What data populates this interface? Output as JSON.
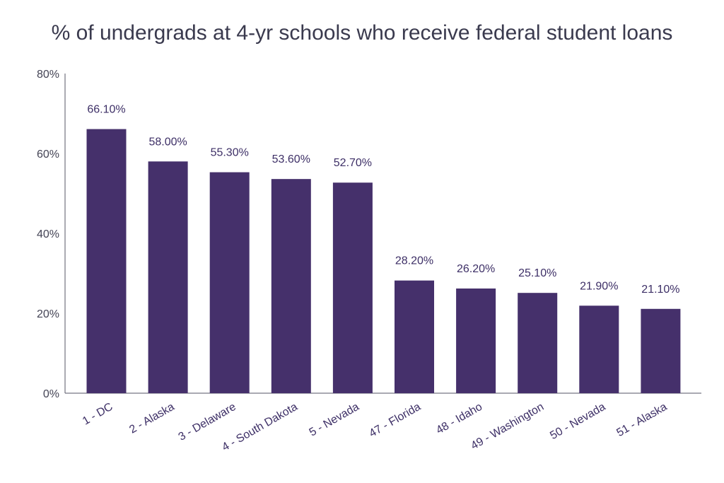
{
  "chart_data": {
    "type": "bar",
    "title": "% of undergrads at 4-yr schools who receive federal student loans",
    "xlabel": "",
    "ylabel": "",
    "ylim": [
      0,
      80
    ],
    "yticks": [
      0,
      20,
      40,
      60,
      80
    ],
    "ytick_labels": [
      "0%",
      "20%",
      "40%",
      "60%",
      "80%"
    ],
    "grid": false,
    "legend": "none",
    "categories": [
      "1 - DC",
      "2 - Alaska",
      "3 - Delaware",
      "4 - South Dakota",
      "5 - Nevada",
      "47 - Florida",
      "48 - Idaho",
      "49 - Washington",
      "50 - Nevada",
      "51 - Alaska"
    ],
    "values": [
      66.1,
      58.0,
      55.3,
      53.6,
      52.7,
      28.2,
      26.2,
      25.1,
      21.9,
      21.1
    ],
    "data_labels": [
      "66.10%",
      "58.00%",
      "55.30%",
      "53.60%",
      "52.70%",
      "28.20%",
      "26.20%",
      "25.10%",
      "21.90%",
      "21.10%"
    ],
    "colors": {
      "bar": "#45306b",
      "axis": "#555566",
      "title": "#3a3a4e"
    }
  }
}
